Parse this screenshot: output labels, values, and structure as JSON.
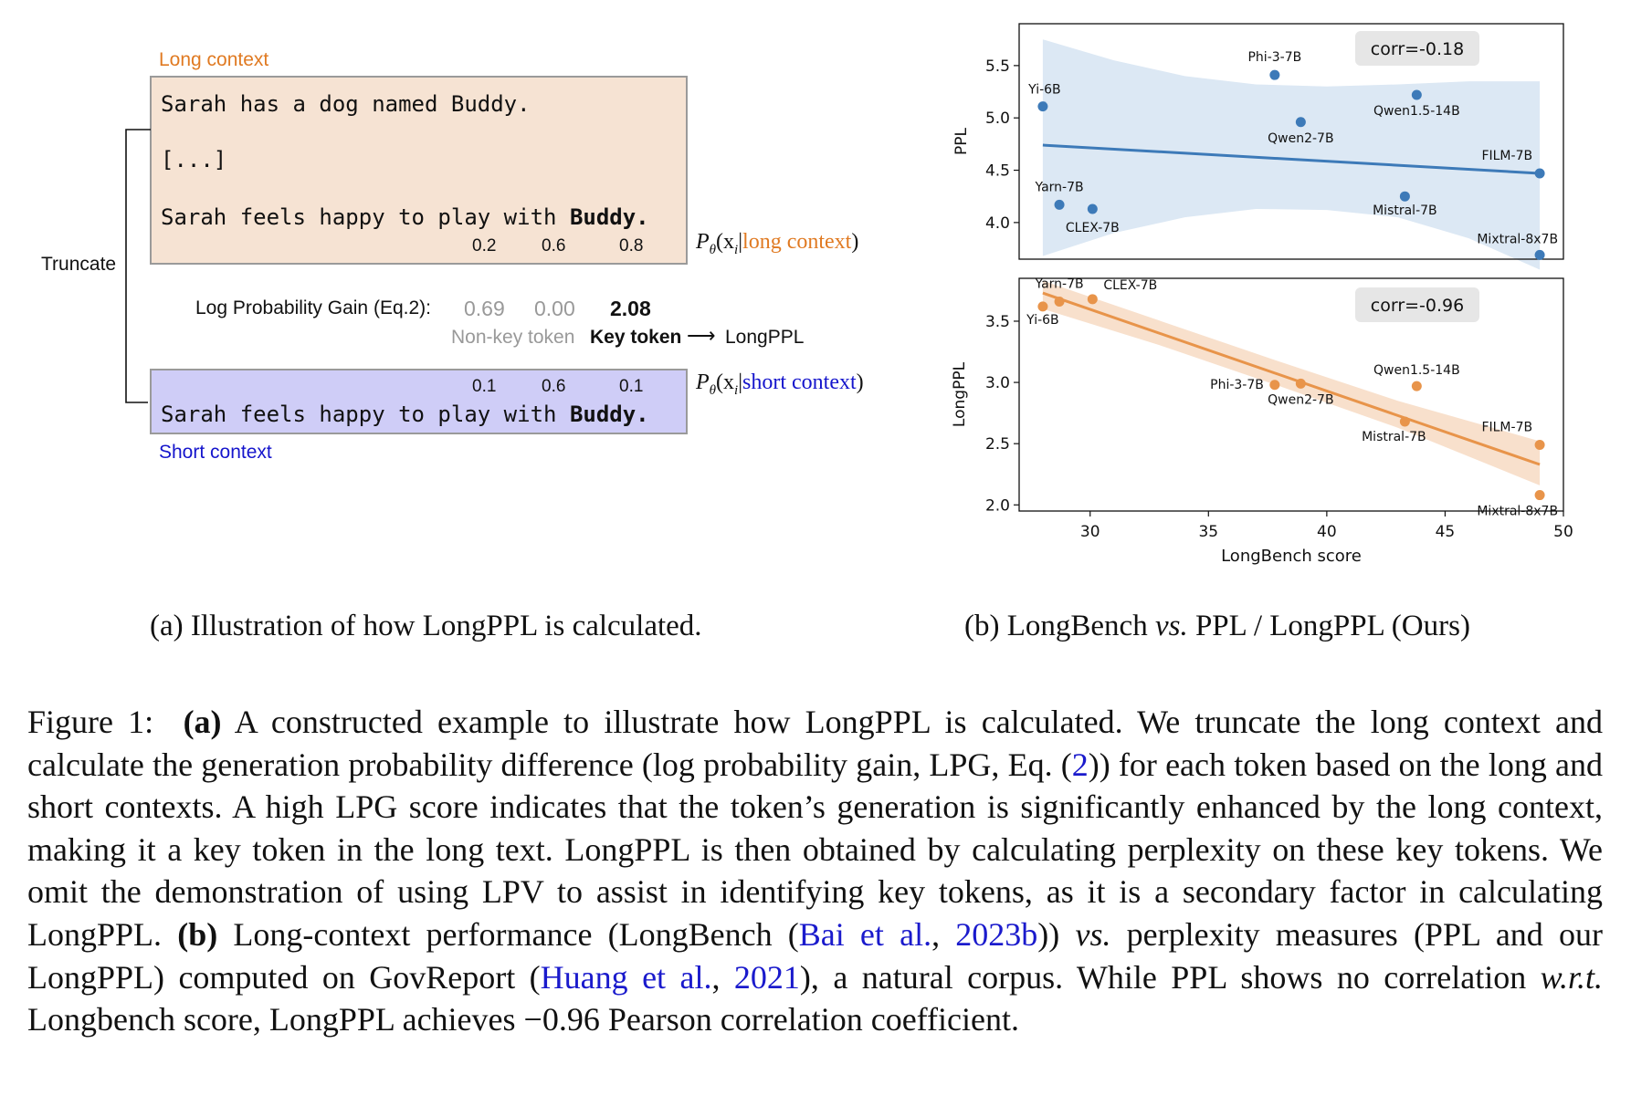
{
  "illustration": {
    "long_context_label": "Long context",
    "long_lines": [
      "Sarah has a dog named Buddy.",
      "[...]"
    ],
    "long_last_prefix": "Sarah feels happy to play with ",
    "long_last_bold": "Buddy.",
    "long_probs": [
      "0.2",
      "0.6",
      "0.8"
    ],
    "long_cond_prefix": "P",
    "long_cond_sub": "θ",
    "long_cond_mid": "(x",
    "long_cond_sub2": "i",
    "long_cond_bar": "|",
    "long_cond_colored": "long context",
    "long_cond_end": ")",
    "truncate_label": "Truncate",
    "lpg_label": "Log Probability Gain (Eq.2):",
    "lpg_values": [
      "0.69",
      "0.00",
      "2.08"
    ],
    "nonkey_label": "Non-key token",
    "key_label": "Key token",
    "arrow_glyph": "⟶",
    "longppl_label": "LongPPL",
    "short_probs": [
      "0.1",
      "0.6",
      "0.1"
    ],
    "short_prefix": "Sarah feels happy to play with ",
    "short_bold": "Buddy.",
    "short_cond_colored": "short context",
    "short_context_label": "Short context",
    "colors": {
      "orange": "#e07a22",
      "blue": "#1515cc",
      "long_fill": "#f6e3d3",
      "short_fill": "#cfcdf7"
    }
  },
  "subcaption_a": "(a) Illustration of how LongPPL is calculated.",
  "subcaption_b_pre": "(b) LongBench ",
  "subcaption_b_vs": "vs.",
  "subcaption_b_post": " PPL / LongPPL (Ours)",
  "chart_data": [
    {
      "type": "scatter",
      "title": "",
      "xlabel": "",
      "ylabel": "PPL",
      "xlim": [
        27,
        50
      ],
      "ylim": [
        3.65,
        5.9
      ],
      "yticks": [
        4.0,
        4.5,
        5.0,
        5.5
      ],
      "corr_label": "corr=-0.18",
      "color": "#3d7ab8",
      "band_color": "#dce8f4",
      "points": [
        {
          "label": "Yi-6B",
          "x": 28.0,
          "y": 5.11
        },
        {
          "label": "Phi-3-7B",
          "x": 37.8,
          "y": 5.41
        },
        {
          "label": "Qwen2-7B",
          "x": 38.9,
          "y": 4.96
        },
        {
          "label": "Qwen1.5-14B",
          "x": 43.8,
          "y": 5.22
        },
        {
          "label": "FILM-7B",
          "x": 49.0,
          "y": 4.47
        },
        {
          "label": "Yarn-7B",
          "x": 28.7,
          "y": 4.17
        },
        {
          "label": "CLEX-7B",
          "x": 30.1,
          "y": 4.13
        },
        {
          "label": "Mistral-7B",
          "x": 43.3,
          "y": 4.25
        },
        {
          "label": "Mixtral-8x7B",
          "x": 49.0,
          "y": 3.69
        }
      ],
      "fit": {
        "x": [
          28.0,
          49.0
        ],
        "y": [
          4.74,
          4.47
        ]
      },
      "band_upper": [
        [
          28.0,
          5.75
        ],
        [
          31,
          5.55
        ],
        [
          34,
          5.4
        ],
        [
          37,
          5.32
        ],
        [
          40,
          5.3
        ],
        [
          43,
          5.32
        ],
        [
          46,
          5.35
        ],
        [
          49.0,
          5.35
        ]
      ],
      "band_lower": [
        [
          28.0,
          3.68
        ],
        [
          31,
          3.9
        ],
        [
          34,
          4.05
        ],
        [
          37,
          4.13
        ],
        [
          40,
          4.12
        ],
        [
          43,
          4.05
        ],
        [
          46,
          3.85
        ],
        [
          49.0,
          3.55
        ]
      ]
    },
    {
      "type": "scatter",
      "title": "",
      "xlabel": "LongBench score",
      "ylabel": "LongPPL",
      "xlim": [
        27,
        50
      ],
      "ylim": [
        1.95,
        3.85
      ],
      "xticks": [
        30,
        35,
        40,
        45,
        50
      ],
      "yticks": [
        2.0,
        2.5,
        3.0,
        3.5
      ],
      "corr_label": "corr=-0.96",
      "color": "#e8944a",
      "band_color": "#f8e0cc",
      "points": [
        {
          "label": "Yi-6B",
          "x": 28.0,
          "y": 3.62
        },
        {
          "label": "Yarn-7B",
          "x": 28.7,
          "y": 3.66
        },
        {
          "label": "CLEX-7B",
          "x": 30.1,
          "y": 3.68
        },
        {
          "label": "Phi-3-7B",
          "x": 37.8,
          "y": 2.98
        },
        {
          "label": "Qwen2-7B",
          "x": 38.9,
          "y": 2.99
        },
        {
          "label": "Qwen1.5-14B",
          "x": 43.8,
          "y": 2.97
        },
        {
          "label": "Mistral-7B",
          "x": 43.3,
          "y": 2.68
        },
        {
          "label": "FILM-7B",
          "x": 49.0,
          "y": 2.49
        },
        {
          "label": "Mixtral-8x7B",
          "x": 49.0,
          "y": 2.08
        }
      ],
      "fit": {
        "x": [
          28.0,
          49.0
        ],
        "y": [
          3.73,
          2.33
        ]
      },
      "band_upper": [
        [
          28.0,
          3.83
        ],
        [
          33,
          3.5
        ],
        [
          38,
          3.17
        ],
        [
          43,
          2.85
        ],
        [
          49.0,
          2.52
        ]
      ],
      "band_lower": [
        [
          28.0,
          3.6
        ],
        [
          33,
          3.3
        ],
        [
          38,
          2.97
        ],
        [
          43,
          2.63
        ],
        [
          49.0,
          2.16
        ]
      ]
    }
  ],
  "caption": {
    "fig_label": "Figure 1:",
    "a_label": "(a)",
    "a_text": " A constructed example to illustrate how LongPPL is calculated. We truncate the long context and calculate the generation probability difference (log probability gain, LPG, Eq. (",
    "eq_ref": "2",
    "a_text2": ")) for each token based on the long and short contexts. A high LPG score indicates that the token’s generation is significantly enhanced by the long context, making it a key token in the long text. LongPPL is then obtained by calculating perplexity on these key tokens. We omit the demonstration of using LPV to assist in identifying key tokens, as it is a secondary factor in calculating LongPPL. ",
    "b_label": "(b)",
    "b_text": " Long-context performance (LongBench (",
    "cite1_name": "Bai et al.",
    "cite1_sep": ", ",
    "cite1_year": "2023b",
    "b_text2": ")) ",
    "b_vs": "vs.",
    "b_text3": " perplexity measures (PPL and our LongPPL) computed on GovReport (",
    "cite2_name": "Huang et al.",
    "cite2_sep": ", ",
    "cite2_year": "2021",
    "b_text4": "), a natural corpus. While PPL shows no correlation ",
    "b_wrt": "w.r.t.",
    "b_text5": " Longbench score, LongPPL achieves −0.96 Pearson correlation coefficient."
  }
}
